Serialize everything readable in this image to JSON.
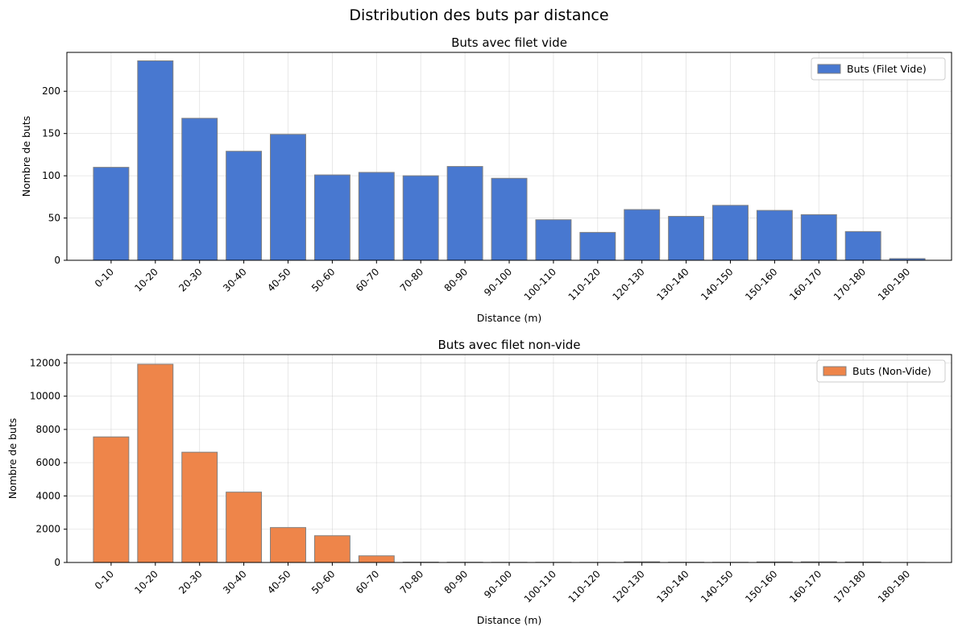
{
  "figure": {
    "title": "Distribution des buts par distance"
  },
  "chart_data": [
    {
      "type": "bar",
      "title": "Buts avec filet vide",
      "xlabel": "Distance (m)",
      "ylabel": "Nombre de buts",
      "categories": [
        "0-10",
        "10-20",
        "20-30",
        "30-40",
        "40-50",
        "50-60",
        "60-70",
        "70-80",
        "80-90",
        "90-100",
        "100-110",
        "110-120",
        "120-130",
        "130-140",
        "140-150",
        "150-160",
        "160-170",
        "170-180",
        "180-190"
      ],
      "series": [
        {
          "name": "Buts (Filet Vide)",
          "color": "#4878d0",
          "values": [
            110,
            236,
            168,
            129,
            149,
            101,
            104,
            100,
            111,
            97,
            48,
            33,
            60,
            52,
            65,
            59,
            54,
            34,
            2
          ]
        }
      ],
      "ylim": [
        0,
        246
      ],
      "yticks": [
        0,
        50,
        100,
        150,
        200
      ],
      "grid": true,
      "legend": "top-right"
    },
    {
      "type": "bar",
      "title": "Buts avec filet non-vide",
      "xlabel": "Distance (m)",
      "ylabel": "Nombre de buts",
      "categories": [
        "0-10",
        "10-20",
        "20-30",
        "30-40",
        "40-50",
        "50-60",
        "60-70",
        "70-80",
        "80-90",
        "90-100",
        "100-110",
        "110-120",
        "120-130",
        "130-140",
        "140-150",
        "150-160",
        "160-170",
        "170-180",
        "180-190"
      ],
      "series": [
        {
          "name": "Buts (Non-Vide)",
          "color": "#ee854a",
          "values": [
            7550,
            11920,
            6630,
            4230,
            2100,
            1610,
            400,
            20,
            15,
            10,
            10,
            8,
            40,
            15,
            12,
            35,
            40,
            30,
            5
          ]
        }
      ],
      "ylim": [
        0,
        12500
      ],
      "yticks": [
        0,
        2000,
        4000,
        6000,
        8000,
        10000,
        12000
      ],
      "grid": true,
      "legend": "top-right"
    }
  ]
}
